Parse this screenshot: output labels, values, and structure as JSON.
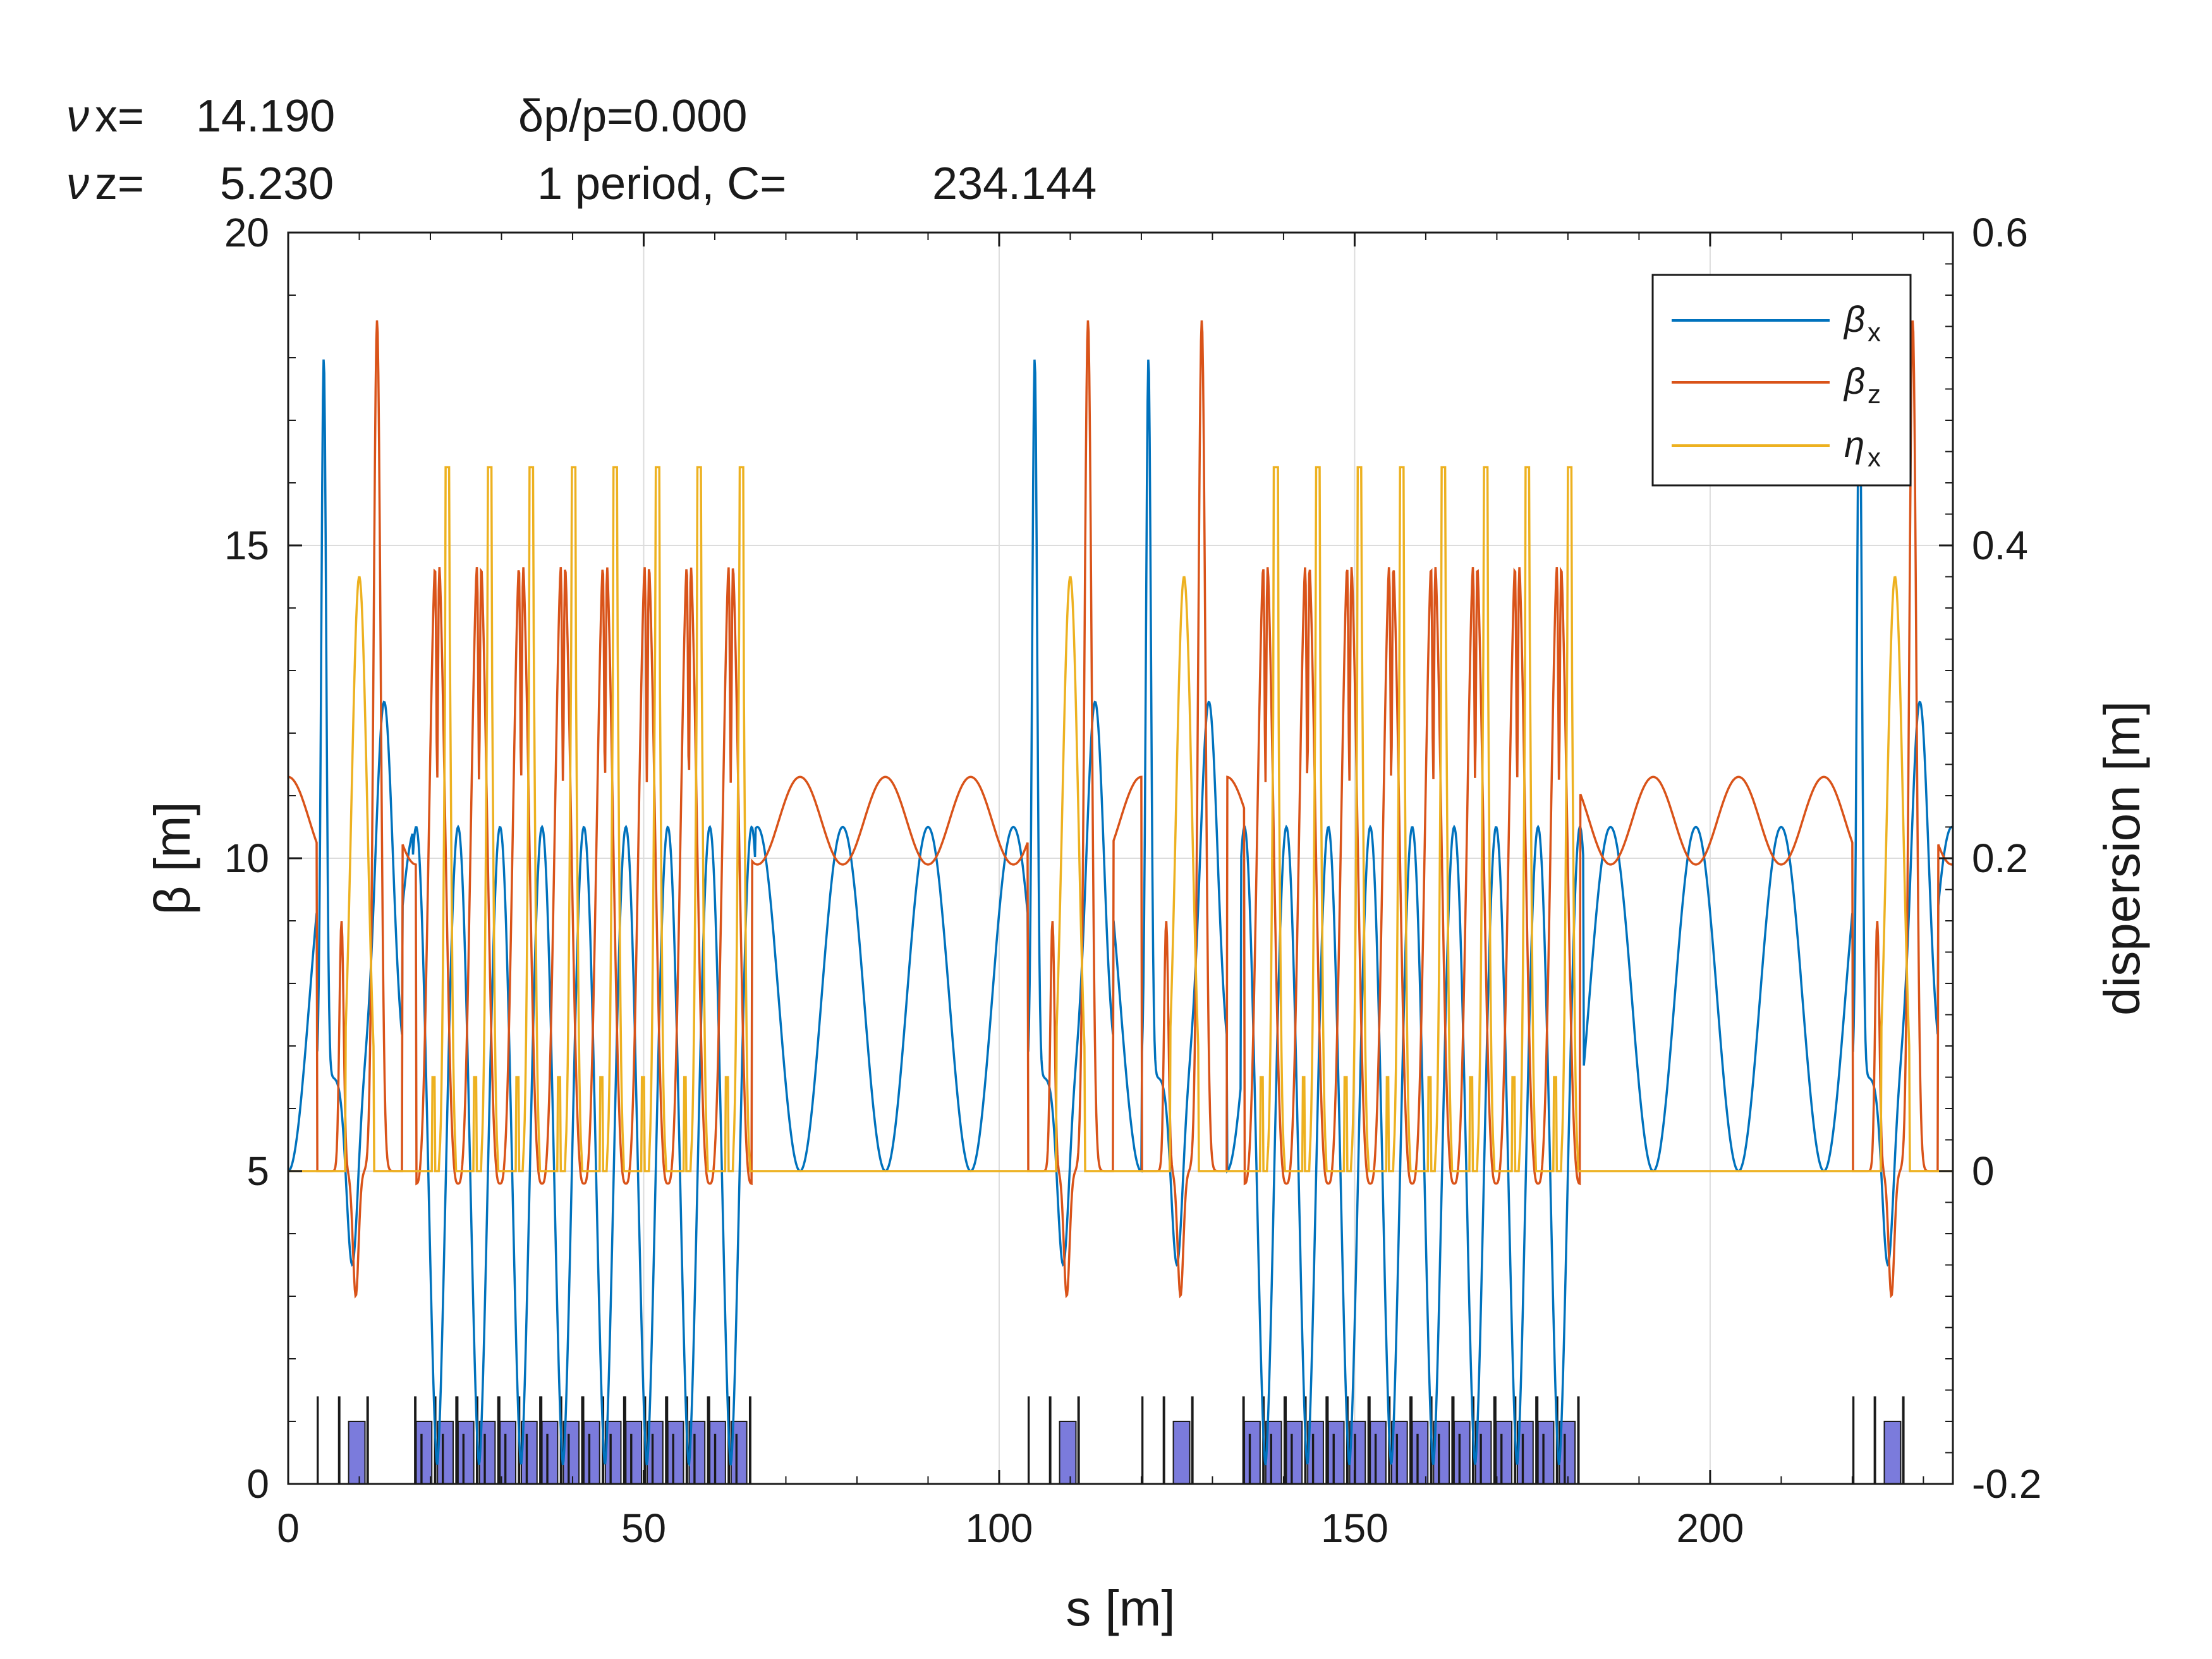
{
  "header": {
    "nux_label": "x=",
    "nux_value": "14.190",
    "nuz_label": "z=",
    "nuz_value": "5.230",
    "dpp": "δp/p=0.000",
    "period": "1  period,  C=",
    "circumference": "234.144"
  },
  "chart_data": {
    "type": "line",
    "xlabel": "s [m]",
    "ylabel": "β [m]",
    "y2label": "dispersion [m]",
    "xlim": [
      0,
      234.144
    ],
    "ylim": [
      0,
      20
    ],
    "y2lim": [
      -0.2,
      0.6
    ],
    "xticks": [
      0,
      50,
      100,
      150,
      200
    ],
    "xtick_labels": [
      "0",
      "50",
      "100",
      "150",
      "200"
    ],
    "yticks": [
      0,
      5,
      10,
      15,
      20
    ],
    "ytick_labels": [
      "0",
      "5",
      "10",
      "15",
      "20"
    ],
    "y2ticks": [
      -0.2,
      0,
      0.2,
      0.4,
      0.6
    ],
    "y2tick_labels": [
      "-0.2",
      "0",
      "0.2",
      "0.4",
      "0.6"
    ],
    "grid": true,
    "legend_position": "top-right",
    "series": [
      {
        "name": "x",
        "symbol": "β",
        "axis": "left",
        "color": "#0072BD"
      },
      {
        "name": "z",
        "symbol": "β",
        "axis": "left",
        "color": "#D95319"
      },
      {
        "name": "x",
        "symbol": "η",
        "axis": "right",
        "color": "#EDB120"
      }
    ],
    "arc_cells": 19,
    "cell_length_m": 5.9,
    "arc_starts_m": [
      18.0,
      134.5
    ],
    "arc_cells_per_arc": 8,
    "dispersion_suppressor_starts_m": [
      6.0,
      106.0,
      122.0,
      222.0
    ],
    "peaks": {
      "beta_x_arc_max": 10.5,
      "beta_x_arc_min": 0.3,
      "beta_z_arc_max": 15.2,
      "beta_z_arc_min": 4.8,
      "beta_x_insertion_max": 16.5,
      "beta_z_insertion_max": 18.6,
      "eta_x_arc_max": 0.45,
      "eta_x_secondary": 0.06,
      "eta_x_suppressor_max": 0.38
    },
    "lattice": {
      "dipole_color": "#7b7bdc",
      "quad_color": "#1a1a1a"
    }
  }
}
